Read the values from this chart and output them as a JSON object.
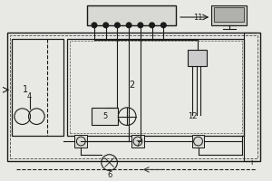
{
  "bg_color": "#e8e8e4",
  "line_color": "#1a1a1a",
  "fig_width": 3.0,
  "fig_height": 2.0,
  "dpi": 100
}
